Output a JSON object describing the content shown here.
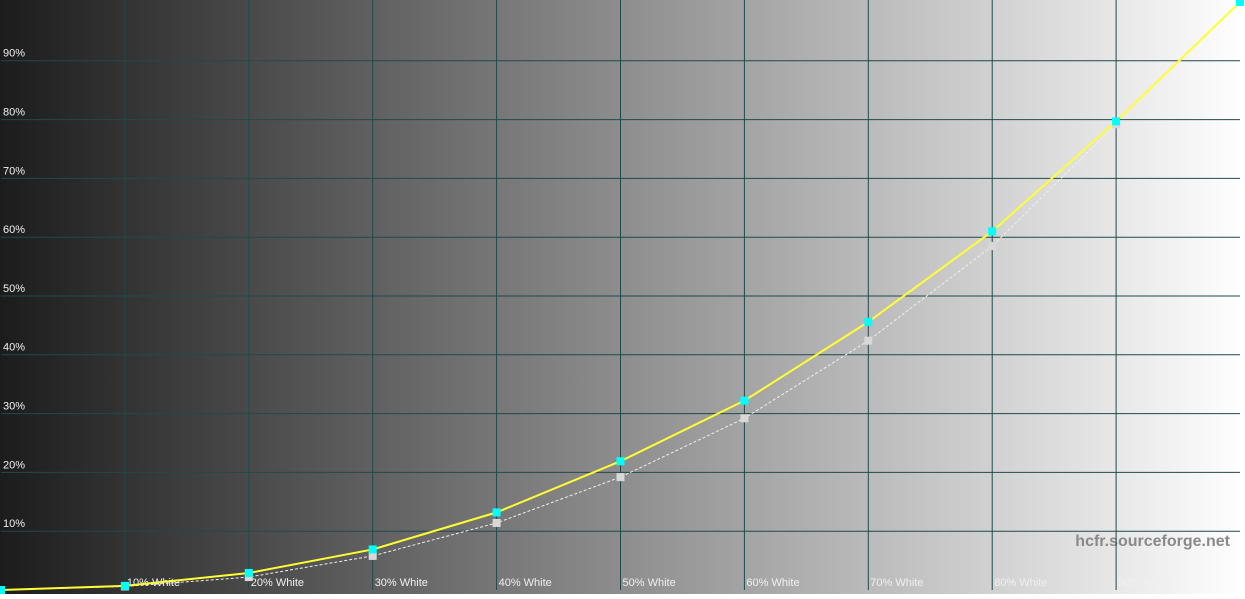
{
  "chart_data": {
    "type": "line",
    "annotation": "hcfr.sourceforge.net",
    "x": [
      0,
      10,
      20,
      30,
      40,
      50,
      60,
      70,
      80,
      90,
      100
    ],
    "xlim": [
      0,
      100
    ],
    "xticks": [
      {
        "value": 10,
        "label": "10% White"
      },
      {
        "value": 20,
        "label": "20% White"
      },
      {
        "value": 30,
        "label": "30% White"
      },
      {
        "value": 40,
        "label": "40% White"
      },
      {
        "value": 50,
        "label": "50% White"
      },
      {
        "value": 60,
        "label": "60% White"
      },
      {
        "value": 70,
        "label": "70% White"
      },
      {
        "value": 80,
        "label": "80% White"
      },
      {
        "value": 90,
        "label": "90% White"
      }
    ],
    "ylim": [
      0,
      100
    ],
    "yticks": [
      {
        "value": 10,
        "label": "10%"
      },
      {
        "value": 20,
        "label": "20%"
      },
      {
        "value": 30,
        "label": "30%"
      },
      {
        "value": 40,
        "label": "40%"
      },
      {
        "value": 50,
        "label": "50%"
      },
      {
        "value": 60,
        "label": "60%"
      },
      {
        "value": 70,
        "label": "70%"
      },
      {
        "value": 80,
        "label": "80%"
      },
      {
        "value": 90,
        "label": "90%"
      }
    ],
    "grid": true,
    "series": [
      {
        "color": "#f0f0f0",
        "marker_color": "#d8d8d8",
        "dashed": true,
        "values": [
          0,
          0.6,
          2.2,
          5.8,
          11.4,
          19.2,
          29.2,
          42.4,
          58.5,
          79.2,
          100
        ]
      },
      {
        "color": "#ffff33",
        "marker_color": "#00ffff",
        "dashed": false,
        "values": [
          0,
          0.7,
          2.9,
          6.9,
          13.2,
          21.9,
          32.2,
          45.6,
          61,
          79.7,
          100
        ]
      }
    ]
  }
}
